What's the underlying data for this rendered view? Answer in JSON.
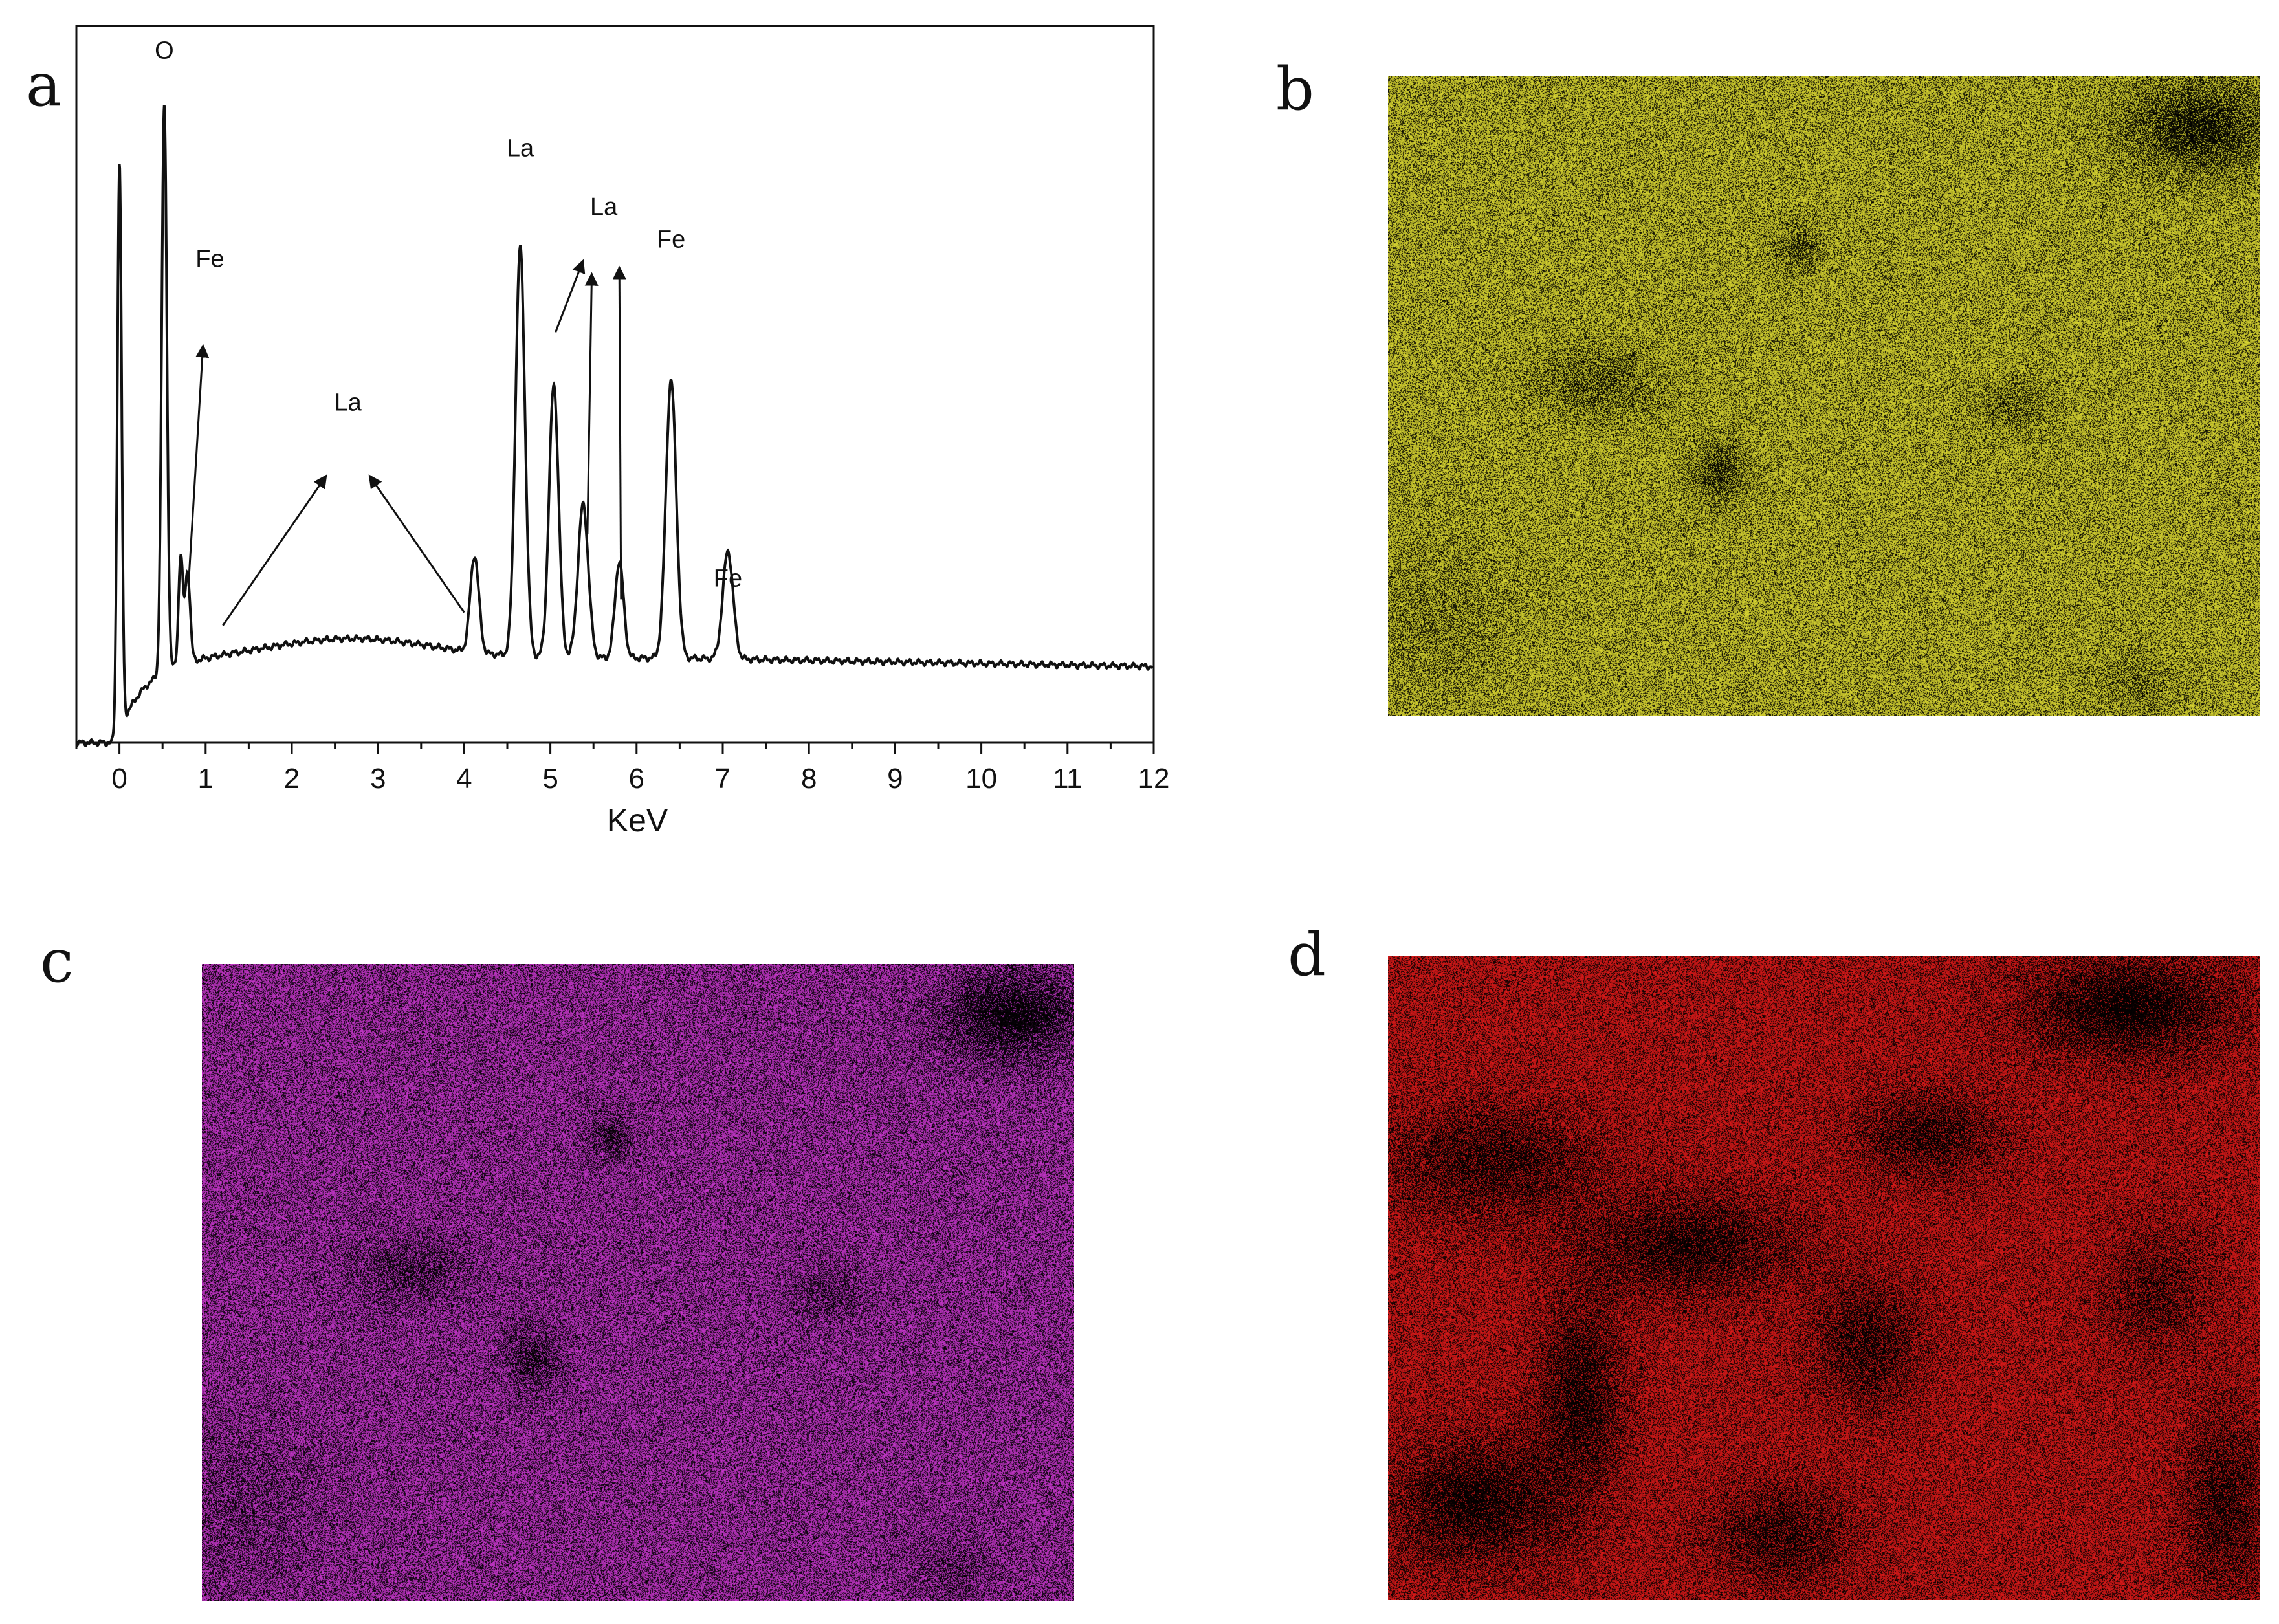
{
  "panels": {
    "a": "a",
    "b": "b",
    "c": "c",
    "d": "d"
  },
  "chart_data": {
    "type": "line",
    "title": "",
    "xlabel": "KeV",
    "ylabel": "",
    "xlim": [
      -0.5,
      12
    ],
    "ylim": [
      0,
      1.1
    ],
    "x_ticks": [
      0,
      1,
      2,
      3,
      4,
      5,
      6,
      7,
      8,
      9,
      10,
      11,
      12
    ],
    "grid": false,
    "y_tick_labels_shown": false,
    "baseline": 0.13,
    "peaks": [
      {
        "x": 0.0,
        "y": 1.0,
        "width": 0.025
      },
      {
        "x": 0.52,
        "y": 1.0,
        "width": 0.03
      },
      {
        "x": 0.71,
        "y": 0.19,
        "width": 0.025
      },
      {
        "x": 0.79,
        "y": 0.16,
        "width": 0.03
      },
      {
        "x": 4.12,
        "y": 0.17,
        "width": 0.05
      },
      {
        "x": 4.65,
        "y": 0.72,
        "width": 0.055
      },
      {
        "x": 5.04,
        "y": 0.48,
        "width": 0.055
      },
      {
        "x": 5.38,
        "y": 0.27,
        "width": 0.06
      },
      {
        "x": 5.8,
        "y": 0.17,
        "width": 0.05
      },
      {
        "x": 6.4,
        "y": 0.49,
        "width": 0.06
      },
      {
        "x": 7.06,
        "y": 0.19,
        "width": 0.06
      }
    ],
    "annotations": [
      {
        "text": "O",
        "x": 0.52,
        "y": 1.05
      },
      {
        "text": "Fe",
        "x": 1.05,
        "y": 0.73
      },
      {
        "text": "La",
        "x": 2.65,
        "y": 0.51
      },
      {
        "text": "La",
        "x": 4.65,
        "y": 0.9
      },
      {
        "text": "La",
        "x": 5.62,
        "y": 0.81
      },
      {
        "text": "Fe",
        "x": 6.4,
        "y": 0.76
      },
      {
        "text": "Fe",
        "x": 7.06,
        "y": 0.24
      }
    ],
    "arrows": [
      {
        "from": [
          0.8,
          0.24
        ],
        "to": [
          0.97,
          0.61
        ]
      },
      {
        "from": [
          1.2,
          0.18
        ],
        "to": [
          2.4,
          0.41
        ]
      },
      {
        "from": [
          4.0,
          0.2
        ],
        "to": [
          2.9,
          0.41
        ]
      },
      {
        "from": [
          5.06,
          0.63
        ],
        "to": [
          5.38,
          0.74
        ]
      },
      {
        "from": [
          5.43,
          0.32
        ],
        "to": [
          5.48,
          0.72
        ]
      },
      {
        "from": [
          5.82,
          0.22
        ],
        "to": [
          5.8,
          0.73
        ]
      }
    ]
  },
  "maps": {
    "b": {
      "color": "#e5e234"
    },
    "c": {
      "color": "#d33ad8"
    },
    "d": {
      "color": "#e81b1b"
    }
  }
}
